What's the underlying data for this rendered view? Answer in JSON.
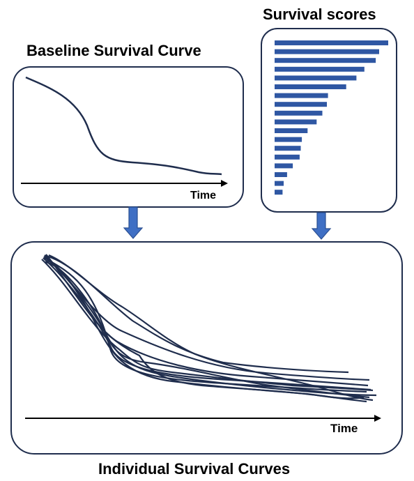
{
  "titles": {
    "baseline": "Baseline Survival Curve",
    "scores": "Survival scores",
    "individual": "Individual Survival Curves"
  },
  "axis_labels": {
    "baseline_x": "Time",
    "individual_x": "Time"
  },
  "colors": {
    "box_border": "#1f2d4d",
    "curve": "#1f2d4d",
    "bar": "#2f57a3",
    "arrow_fill": "#3f6fc4",
    "arrow_stroke": "#2b4f91",
    "axis": "#000000"
  },
  "survival_scores": [
    1.0,
    0.92,
    0.89,
    0.79,
    0.72,
    0.63,
    0.47,
    0.46,
    0.42,
    0.37,
    0.29,
    0.24,
    0.23,
    0.22,
    0.16,
    0.11,
    0.08,
    0.07
  ]
}
